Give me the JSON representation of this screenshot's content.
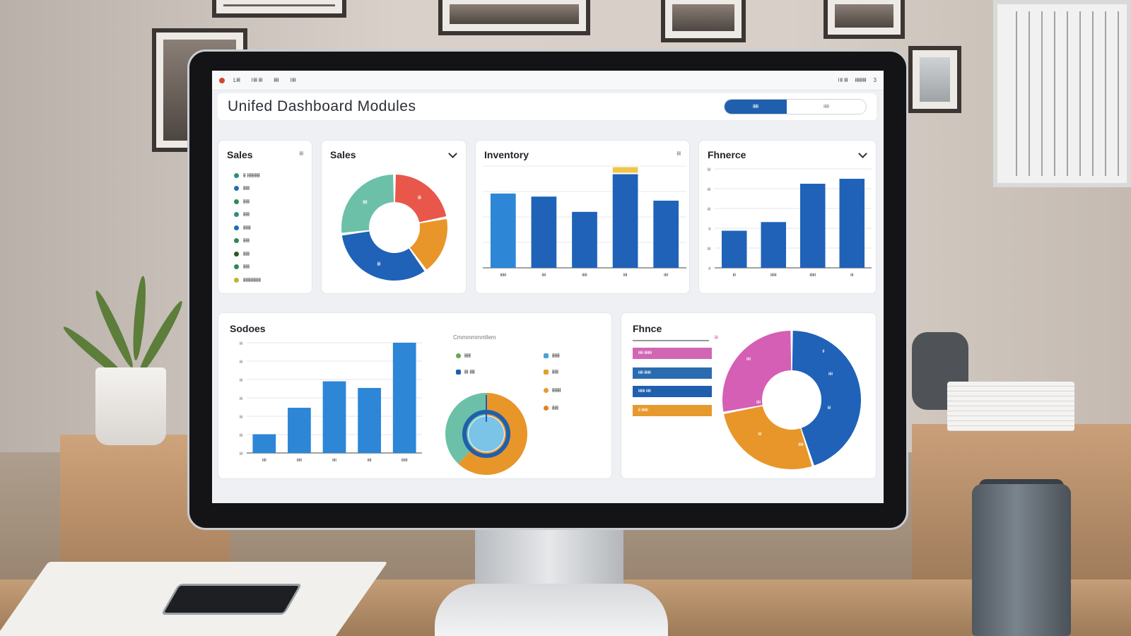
{
  "menubar": {
    "items": [
      "Ŀłłł",
      "ŀłłł łłł",
      "łłłł",
      "ŀłłł"
    ],
    "right": [
      "ŀłł łłł",
      "łłłłłłłłł",
      "3"
    ]
  },
  "header": {
    "title": "Unifed Dashboard Modules",
    "toggle_active": "łłłłł",
    "toggle_inactive": "łłłłł"
  },
  "sales_list": {
    "title": "Sales",
    "control": "łłł",
    "items": [
      {
        "label": "łł łłłłłłłłłł",
        "color": "#2f8e7f"
      },
      {
        "label": "łłłłł",
        "color": "#1e6eb5"
      },
      {
        "label": "łłłłł",
        "color": "#2c8a55"
      },
      {
        "label": "łłłłł",
        "color": "#2f8e7f"
      },
      {
        "label": "łłłłłł",
        "color": "#1e6eb5"
      },
      {
        "label": "łłłłł",
        "color": "#2c8a55"
      },
      {
        "label": "łłłłł",
        "color": "#2a5a2a"
      },
      {
        "label": "łłłłł",
        "color": "#2c8a55"
      },
      {
        "label": "łłłłłłłłłłłłłł",
        "color": "#b8b82e"
      }
    ]
  },
  "sales_donut": {
    "title": "Sales",
    "slice_labels": [
      "łłł",
      "łłłł",
      "łłł"
    ]
  },
  "inventory": {
    "title": "Inventory",
    "control": "łłł",
    "categories": [
      "łłłłłł",
      "łłłł",
      "łłłłł",
      "łłłł",
      "łłłł"
    ]
  },
  "finance_top": {
    "title": "Fhnerce",
    "yticks": [
      "łłł",
      "łłł",
      "łłł",
      "łł",
      "łłł",
      "łł"
    ],
    "categories": [
      "łłł",
      "łłłłłł",
      "łłłłłł",
      "łłł"
    ]
  },
  "sodoes": {
    "title": "Sodoes",
    "yticks": [
      "łłł",
      "łłł",
      "łłł",
      "łłł",
      "łłł",
      "łłł",
      "łłł"
    ],
    "categories": [
      "łłłł",
      "łłłłł",
      "łłłł",
      "łłłł",
      "łłłłłł"
    ]
  },
  "sodoes_legend": {
    "title": "Cmmmmmmllem",
    "items": [
      {
        "label": "łłłłł",
        "color": "#6aa84f"
      },
      {
        "label": "łłłłłł",
        "color": "#4aa3d8"
      },
      {
        "label": "łłł łłłł",
        "color": "#1f5fad"
      },
      {
        "label": "łłłłł",
        "color": "#e0a02a"
      },
      {
        "label": "łłłłłłł",
        "color": "#e69a32"
      },
      {
        "label": "łłłłł",
        "color": "#e67e22"
      }
    ]
  },
  "finance_bottom": {
    "title": "Fhnce",
    "tag": "łłł",
    "bars": [
      {
        "label": "łłłłł łłłłłłłł",
        "color": "#d167b4"
      },
      {
        "label": "łłłłł łłłłłłł",
        "color": "#2b6cb0"
      },
      {
        "label": "łłłłłłł łłłłł",
        "color": "#1f5fad"
      },
      {
        "label": "łł łłłłłłł",
        "color": "#e69a2e"
      }
    ],
    "slice_labels": [
      "łłłł",
      "łł",
      "łłłł",
      "łłłł",
      "łłł",
      "łłł",
      "łłłłł"
    ]
  },
  "chart_data": [
    {
      "type": "pie",
      "id": "sales_donut",
      "values": [
        22,
        18,
        33,
        27
      ],
      "colors": [
        "#e8574a",
        "#e8962a",
        "#1f62b8",
        "#6cc0a8"
      ]
    },
    {
      "type": "bar",
      "id": "inventory",
      "values": [
        73,
        70,
        55,
        92,
        66
      ],
      "highlight": {
        "index": 3,
        "color": "#f0c64a"
      },
      "colors": [
        "#2d86d6",
        "#1f62b8",
        "#1f62b8",
        "#1f62b8",
        "#1f62b8"
      ],
      "ylim": [
        0,
        100
      ]
    },
    {
      "type": "bar",
      "id": "finance_top",
      "values": [
        30,
        37,
        68,
        72
      ],
      "colors": [
        "#1f62b8",
        "#1f62b8",
        "#1f62b8",
        "#1f62b8"
      ],
      "ylim": [
        0,
        80
      ]
    },
    {
      "type": "bar",
      "id": "sodoes",
      "values": [
        17,
        41,
        65,
        59,
        100
      ],
      "colors": [
        "#2d86d6",
        "#2d86d6",
        "#2d86d6",
        "#2d86d6",
        "#2d86d6"
      ],
      "ylim": [
        0,
        100
      ]
    },
    {
      "type": "pie",
      "id": "sodoes_ring",
      "values": [
        62,
        38
      ],
      "colors": [
        "#e8962a",
        "#6cc0a8"
      ]
    },
    {
      "type": "pie",
      "id": "finance_donut",
      "values": [
        45,
        27,
        28
      ],
      "colors": [
        "#1f62b8",
        "#e8962a",
        "#d45fb5"
      ]
    }
  ]
}
